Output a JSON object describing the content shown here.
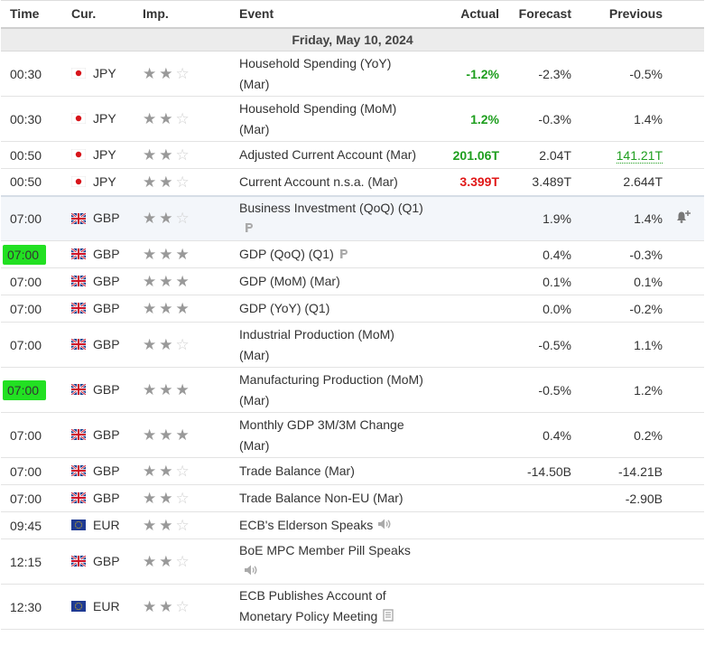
{
  "headers": {
    "time": "Time",
    "currency": "Cur.",
    "importance": "Imp.",
    "event": "Event",
    "actual": "Actual",
    "forecast": "Forecast",
    "previous": "Previous"
  },
  "date_label": "Friday, May 10, 2024",
  "colors": {
    "positive": "#1e9e1e",
    "negative": "#e01818",
    "highlight": "#22e022"
  },
  "rows": [
    {
      "time": "00:30",
      "currency": "JPY",
      "stars": 2,
      "event": [
        "Household Spending (YoY)",
        "(Mar)"
      ],
      "actual": "-1.2%",
      "actual_tone": "pos",
      "forecast": "-2.3%",
      "previous": "-0.5%"
    },
    {
      "time": "00:30",
      "currency": "JPY",
      "stars": 2,
      "event": [
        "Household Spending (MoM)",
        "(Mar)"
      ],
      "actual": "1.2%",
      "actual_tone": "pos",
      "forecast": "-0.3%",
      "previous": "1.4%"
    },
    {
      "time": "00:50",
      "currency": "JPY",
      "stars": 2,
      "event": [
        "Adjusted Current Account (Mar)"
      ],
      "actual": "201.06T",
      "actual_tone": "pos",
      "forecast": "2.04T",
      "previous": "141.21T",
      "previous_revised": true
    },
    {
      "time": "00:50",
      "currency": "JPY",
      "stars": 2,
      "event": [
        "Current Account n.s.a. (Mar)"
      ],
      "actual": "3.399T",
      "actual_tone": "neg",
      "forecast": "3.489T",
      "previous": "2.644T"
    },
    {
      "time": "07:00",
      "currency": "GBP",
      "stars": 2,
      "event": [
        "Business Investment (QoQ) (Q1)"
      ],
      "event_icon": "preliminary-icon",
      "icon_newline": true,
      "actual": "",
      "forecast": "1.9%",
      "previous": "1.4%",
      "alert": true,
      "hl": true
    },
    {
      "time": "07:00",
      "currency": "GBP",
      "stars": 3,
      "event": [
        "GDP (QoQ) (Q1)"
      ],
      "event_icon": "preliminary-icon",
      "actual": "",
      "forecast": "0.4%",
      "previous": "-0.3%",
      "time_hl": true
    },
    {
      "time": "07:00",
      "currency": "GBP",
      "stars": 3,
      "event": [
        "GDP (MoM) (Mar)"
      ],
      "actual": "",
      "forecast": "0.1%",
      "previous": "0.1%"
    },
    {
      "time": "07:00",
      "currency": "GBP",
      "stars": 3,
      "event": [
        "GDP (YoY) (Q1)"
      ],
      "actual": "",
      "forecast": "0.0%",
      "previous": "-0.2%"
    },
    {
      "time": "07:00",
      "currency": "GBP",
      "stars": 2,
      "event": [
        "Industrial Production (MoM)",
        "(Mar)"
      ],
      "actual": "",
      "forecast": "-0.5%",
      "previous": "1.1%"
    },
    {
      "time": "07:00",
      "currency": "GBP",
      "stars": 3,
      "event": [
        "Manufacturing Production (MoM)",
        "(Mar)"
      ],
      "actual": "",
      "forecast": "-0.5%",
      "previous": "1.2%",
      "time_hl": true
    },
    {
      "time": "07:00",
      "currency": "GBP",
      "stars": 3,
      "event": [
        "Monthly GDP 3M/3M Change",
        "(Mar)"
      ],
      "actual": "",
      "forecast": "0.4%",
      "previous": "0.2%"
    },
    {
      "time": "07:00",
      "currency": "GBP",
      "stars": 2,
      "event": [
        "Trade Balance (Mar)"
      ],
      "actual": "",
      "forecast": "-14.50B",
      "previous": "-14.21B"
    },
    {
      "time": "07:00",
      "currency": "GBP",
      "stars": 2,
      "event": [
        "Trade Balance Non-EU (Mar)"
      ],
      "actual": "",
      "forecast": "",
      "previous": "-2.90B"
    },
    {
      "time": "09:45",
      "currency": "EUR",
      "stars": 2,
      "event": [
        "ECB's Elderson Speaks"
      ],
      "event_icon": "speaker-icon",
      "actual": "",
      "forecast": "",
      "previous": ""
    },
    {
      "time": "12:15",
      "currency": "GBP",
      "stars": 2,
      "event": [
        "BoE MPC Member Pill Speaks"
      ],
      "event_icon": "speaker-icon",
      "icon_newline": true,
      "actual": "",
      "forecast": "",
      "previous": ""
    },
    {
      "time": "12:30",
      "currency": "EUR",
      "stars": 2,
      "event": [
        "ECB Publishes Account of",
        "Monetary Policy Meeting"
      ],
      "event_icon": "document-icon",
      "actual": "",
      "forecast": "",
      "previous": ""
    }
  ]
}
